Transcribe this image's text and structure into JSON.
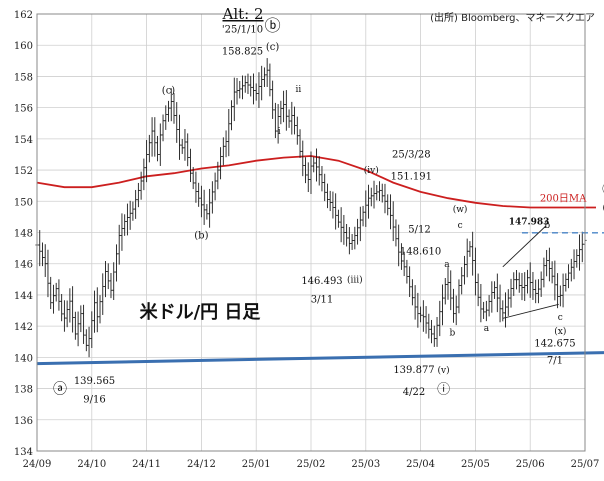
{
  "chart_data": {
    "type": "line",
    "chart_kind": "ohlc",
    "title": "Alt: 2",
    "source": "(出所) Bloomberg、マネースクエア",
    "watermark": "米ドル/円 日足",
    "x_tick_labels": [
      "24/09",
      "24/10",
      "24/11",
      "24/12",
      "25/01",
      "25/02",
      "25/03",
      "25/04",
      "25/05",
      "25/06",
      "25/07"
    ],
    "ylim": [
      134,
      162
    ],
    "y_ticks": [
      134,
      136,
      138,
      140,
      142,
      144,
      146,
      148,
      150,
      152,
      154,
      156,
      158,
      160,
      162
    ],
    "grid": true,
    "ma_label": "200日MA",
    "colors": {
      "price": "#1a1a1a",
      "ma": "#cc1f1f",
      "support": "#3a6fb0",
      "hline": "#4a86c8",
      "grid": "#cfcfcf"
    },
    "price_path": [
      {
        "x": 0.0,
        "y": 147.2
      },
      {
        "x": 0.15,
        "y": 146.0
      },
      {
        "x": 0.25,
        "y": 143.5
      },
      {
        "x": 0.35,
        "y": 144.4
      },
      {
        "x": 0.48,
        "y": 142.3
      },
      {
        "x": 0.6,
        "y": 143.6
      },
      {
        "x": 0.7,
        "y": 141.5
      },
      {
        "x": 0.8,
        "y": 142.8
      },
      {
        "x": 0.88,
        "y": 140.6
      },
      {
        "x": 0.95,
        "y": 141.2
      },
      {
        "x": 1.05,
        "y": 143.5
      },
      {
        "x": 1.1,
        "y": 142.6
      },
      {
        "x": 1.25,
        "y": 145.5
      },
      {
        "x": 1.35,
        "y": 144.3
      },
      {
        "x": 1.5,
        "y": 147.8
      },
      {
        "x": 1.6,
        "y": 148.7
      },
      {
        "x": 1.75,
        "y": 149.5
      },
      {
        "x": 1.9,
        "y": 151.3
      },
      {
        "x": 2.0,
        "y": 153.0
      },
      {
        "x": 2.1,
        "y": 154.5
      },
      {
        "x": 2.2,
        "y": 153.0
      },
      {
        "x": 2.28,
        "y": 155.0
      },
      {
        "x": 2.38,
        "y": 155.8
      },
      {
        "x": 2.45,
        "y": 156.4
      },
      {
        "x": 2.55,
        "y": 154.6
      },
      {
        "x": 2.62,
        "y": 153.2
      },
      {
        "x": 2.7,
        "y": 153.8
      },
      {
        "x": 2.8,
        "y": 151.8
      },
      {
        "x": 2.88,
        "y": 150.8
      },
      {
        "x": 2.95,
        "y": 150.2
      },
      {
        "x": 3.02,
        "y": 149.6
      },
      {
        "x": 3.1,
        "y": 149.2
      },
      {
        "x": 3.2,
        "y": 150.6
      },
      {
        "x": 3.3,
        "y": 152.0
      },
      {
        "x": 3.38,
        "y": 153.4
      },
      {
        "x": 3.46,
        "y": 153.9
      },
      {
        "x": 3.52,
        "y": 155.5
      },
      {
        "x": 3.6,
        "y": 157.0
      },
      {
        "x": 3.7,
        "y": 157.2
      },
      {
        "x": 3.8,
        "y": 157.6
      },
      {
        "x": 3.9,
        "y": 157.3
      },
      {
        "x": 4.0,
        "y": 156.9
      },
      {
        "x": 4.1,
        "y": 157.8
      },
      {
        "x": 4.2,
        "y": 158.4
      },
      {
        "x": 4.28,
        "y": 156.4
      },
      {
        "x": 4.35,
        "y": 154.5
      },
      {
        "x": 4.42,
        "y": 155.8
      },
      {
        "x": 4.5,
        "y": 156.2
      },
      {
        "x": 4.58,
        "y": 155.0
      },
      {
        "x": 4.65,
        "y": 155.5
      },
      {
        "x": 4.75,
        "y": 154.2
      },
      {
        "x": 4.82,
        "y": 152.8
      },
      {
        "x": 4.88,
        "y": 151.8
      },
      {
        "x": 4.95,
        "y": 151.4
      },
      {
        "x": 5.02,
        "y": 152.6
      },
      {
        "x": 5.1,
        "y": 152.2
      },
      {
        "x": 5.2,
        "y": 151.2
      },
      {
        "x": 5.28,
        "y": 150.2
      },
      {
        "x": 5.38,
        "y": 149.8
      },
      {
        "x": 5.48,
        "y": 148.8
      },
      {
        "x": 5.6,
        "y": 148.0
      },
      {
        "x": 5.7,
        "y": 147.3
      },
      {
        "x": 5.78,
        "y": 147.6
      },
      {
        "x": 5.85,
        "y": 148.3
      },
      {
        "x": 5.95,
        "y": 149.3
      },
      {
        "x": 6.05,
        "y": 150.2
      },
      {
        "x": 6.15,
        "y": 150.5
      },
      {
        "x": 6.25,
        "y": 150.7
      },
      {
        "x": 6.35,
        "y": 150.0
      },
      {
        "x": 6.45,
        "y": 149.1
      },
      {
        "x": 6.55,
        "y": 147.6
      },
      {
        "x": 6.62,
        "y": 146.4
      },
      {
        "x": 6.7,
        "y": 145.8
      },
      {
        "x": 6.78,
        "y": 144.8
      },
      {
        "x": 6.88,
        "y": 143.4
      },
      {
        "x": 6.95,
        "y": 142.8
      },
      {
        "x": 7.05,
        "y": 142.6
      },
      {
        "x": 7.15,
        "y": 141.8
      },
      {
        "x": 7.25,
        "y": 141.2
      },
      {
        "x": 7.32,
        "y": 142.4
      },
      {
        "x": 7.4,
        "y": 143.8
      },
      {
        "x": 7.48,
        "y": 145.2
      },
      {
        "x": 7.55,
        "y": 143.8
      },
      {
        "x": 7.62,
        "y": 142.4
      },
      {
        "x": 7.7,
        "y": 144.6
      },
      {
        "x": 7.78,
        "y": 145.6
      },
      {
        "x": 7.85,
        "y": 146.8
      },
      {
        "x": 7.92,
        "y": 147.2
      },
      {
        "x": 7.98,
        "y": 145.2
      },
      {
        "x": 8.04,
        "y": 144.0
      },
      {
        "x": 8.1,
        "y": 143.1
      },
      {
        "x": 8.18,
        "y": 142.8
      },
      {
        "x": 8.26,
        "y": 143.7
      },
      {
        "x": 8.34,
        "y": 144.6
      },
      {
        "x": 8.4,
        "y": 143.8
      },
      {
        "x": 8.48,
        "y": 142.7
      },
      {
        "x": 8.56,
        "y": 143.3
      },
      {
        "x": 8.64,
        "y": 144.3
      },
      {
        "x": 8.72,
        "y": 145.2
      },
      {
        "x": 8.8,
        "y": 144.6
      },
      {
        "x": 8.88,
        "y": 144.4
      },
      {
        "x": 8.96,
        "y": 145.2
      },
      {
        "x": 9.04,
        "y": 144.4
      },
      {
        "x": 9.12,
        "y": 144.0
      },
      {
        "x": 9.2,
        "y": 145.0
      },
      {
        "x": 9.28,
        "y": 146.4
      },
      {
        "x": 9.36,
        "y": 145.6
      },
      {
        "x": 9.44,
        "y": 144.8
      },
      {
        "x": 9.52,
        "y": 143.6
      },
      {
        "x": 9.6,
        "y": 144.6
      },
      {
        "x": 9.7,
        "y": 145.4
      },
      {
        "x": 9.78,
        "y": 146.0
      },
      {
        "x": 9.86,
        "y": 146.6
      },
      {
        "x": 9.94,
        "y": 147.2
      },
      {
        "x": 10.02,
        "y": 147.6
      }
    ],
    "series": [
      {
        "name": "200日MA",
        "points": [
          {
            "x": 0.0,
            "y": 151.2
          },
          {
            "x": 0.5,
            "y": 150.9
          },
          {
            "x": 1.0,
            "y": 150.9
          },
          {
            "x": 1.5,
            "y": 151.2
          },
          {
            "x": 2.0,
            "y": 151.6
          },
          {
            "x": 2.5,
            "y": 151.8
          },
          {
            "x": 3.0,
            "y": 152.1
          },
          {
            "x": 3.5,
            "y": 152.3
          },
          {
            "x": 4.0,
            "y": 152.6
          },
          {
            "x": 4.5,
            "y": 152.8
          },
          {
            "x": 5.0,
            "y": 152.9
          },
          {
            "x": 5.5,
            "y": 152.6
          },
          {
            "x": 6.0,
            "y": 152.0
          },
          {
            "x": 6.5,
            "y": 151.2
          },
          {
            "x": 7.0,
            "y": 150.6
          },
          {
            "x": 7.5,
            "y": 150.2
          },
          {
            "x": 8.0,
            "y": 149.9
          },
          {
            "x": 8.5,
            "y": 149.7
          },
          {
            "x": 9.0,
            "y": 149.6
          },
          {
            "x": 9.5,
            "y": 149.6
          },
          {
            "x": 10.0,
            "y": 149.6
          },
          {
            "x": 10.2,
            "y": 149.6
          }
        ]
      }
    ],
    "support_line": [
      {
        "x": 0.0,
        "y": 139.6
      },
      {
        "x": 10.35,
        "y": 140.3
      }
    ],
    "hline": {
      "x_from": 8.85,
      "x_to": 10.35,
      "y": 147.983
    },
    "trend_lines": [
      [
        {
          "x": 8.5,
          "y": 145.8
        },
        {
          "x": 9.28,
          "y": 148.4
        }
      ],
      [
        {
          "x": 8.5,
          "y": 142.5
        },
        {
          "x": 9.52,
          "y": 143.4
        }
      ]
    ],
    "annotations": [
      {
        "text": "ⓐ",
        "x": 0.42,
        "y": 137.7,
        "size": 14
      },
      {
        "text": "139.565",
        "x": 1.05,
        "y": 138.3,
        "size": 10
      },
      {
        "text": "9/16",
        "x": 1.05,
        "y": 137.1,
        "size": 10
      },
      {
        "text": "(c)",
        "x": 2.4,
        "y": 156.9,
        "size": 10
      },
      {
        "text": "(b)",
        "x": 3.0,
        "y": 147.6,
        "size": 10
      },
      {
        "text": "'25/1/10",
        "x": 3.75,
        "y": 160.8,
        "size": 10
      },
      {
        "text": "158.825",
        "x": 3.75,
        "y": 159.4,
        "size": 10
      },
      {
        "text": "ⓑ",
        "x": 4.3,
        "y": 160.9,
        "size": 16
      },
      {
        "text": "(c)",
        "x": 4.3,
        "y": 159.7,
        "size": 10
      },
      {
        "text": "ii",
        "x": 4.77,
        "y": 157.0,
        "size": 9
      },
      {
        "text": "i",
        "x": 4.42,
        "y": 154.3,
        "size": 9
      },
      {
        "text": "(iv)",
        "x": 6.1,
        "y": 151.8,
        "size": 9
      },
      {
        "text": "25/3/28",
        "x": 6.83,
        "y": 152.8,
        "size": 10
      },
      {
        "text": "151.191",
        "x": 6.83,
        "y": 151.4,
        "size": 10
      },
      {
        "text": "146.493",
        "x": 5.2,
        "y": 144.7,
        "size": 10
      },
      {
        "text": "3/11",
        "x": 5.2,
        "y": 143.5,
        "size": 10
      },
      {
        "text": "(iii)",
        "x": 5.8,
        "y": 144.8,
        "size": 9
      },
      {
        "text": "5/12",
        "x": 6.98,
        "y": 148.0,
        "size": 10
      },
      {
        "text": "148.610",
        "x": 7.0,
        "y": 146.6,
        "size": 10
      },
      {
        "text": "(w)",
        "x": 7.72,
        "y": 149.3,
        "size": 9
      },
      {
        "text": "c",
        "x": 7.72,
        "y": 148.3,
        "size": 9
      },
      {
        "text": "a",
        "x": 7.48,
        "y": 145.8,
        "size": 9
      },
      {
        "text": "b",
        "x": 7.58,
        "y": 141.4,
        "size": 9
      },
      {
        "text": "a",
        "x": 8.2,
        "y": 141.7,
        "size": 9
      },
      {
        "text": "147.983",
        "x": 8.98,
        "y": 148.5,
        "size": 9,
        "bold": true
      },
      {
        "text": "b",
        "x": 9.31,
        "y": 148.3,
        "size": 9
      },
      {
        "text": "c",
        "x": 9.55,
        "y": 142.4,
        "size": 9
      },
      {
        "text": "(x)",
        "x": 9.55,
        "y": 141.5,
        "size": 9
      },
      {
        "text": "200日MA",
        "x": 9.6,
        "y": 150.0,
        "size": 10
      },
      {
        "text": "ⓘ",
        "x": 10.43,
        "y": 150.5,
        "size": 13
      },
      {
        "text": "(y)",
        "x": 10.43,
        "y": 149.4,
        "size": 9
      },
      {
        "text": "c",
        "x": 10.43,
        "y": 148.6,
        "size": 9
      },
      {
        "text": "142.675",
        "x": 9.45,
        "y": 140.7,
        "size": 10
      },
      {
        "text": "7/1",
        "x": 9.45,
        "y": 139.6,
        "size": 10
      },
      {
        "text": "139.877",
        "x": 6.88,
        "y": 139.0,
        "size": 10
      },
      {
        "text": "4/22",
        "x": 6.88,
        "y": 137.6,
        "size": 10
      },
      {
        "text": "(v)",
        "x": 7.42,
        "y": 139.0,
        "size": 9
      },
      {
        "text": "ⓘ",
        "x": 7.42,
        "y": 137.7,
        "size": 13
      }
    ]
  }
}
